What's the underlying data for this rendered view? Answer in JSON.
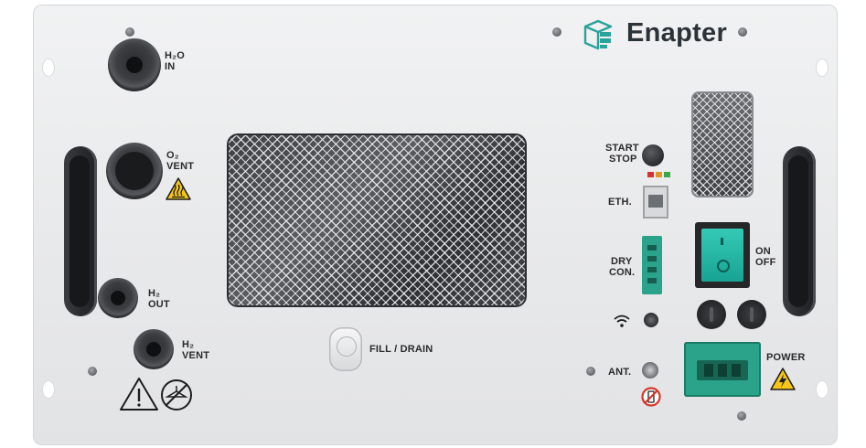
{
  "brand": {
    "name": "Enapter"
  },
  "labels": {
    "h2o_in": [
      "H₂O",
      "IN"
    ],
    "o2_vent": [
      "O₂",
      "VENT"
    ],
    "h2_out": [
      "H₂",
      "OUT"
    ],
    "h2_vent": [
      "H₂",
      "VENT"
    ],
    "start_stop": [
      "START",
      "STOP"
    ],
    "eth": "ETH.",
    "dry_con": [
      "DRY",
      "CON."
    ],
    "on_off": [
      "ON",
      "OFF"
    ],
    "fill_drain": "FILL / DRAIN",
    "ant": "ANT.",
    "power": "POWER"
  },
  "icons": {
    "brand_logo": "stack-logo-icon",
    "hot_surface": "hot-surface-warning-icon",
    "general_warning": "general-warning-icon",
    "no_valve": "no-valve-icon",
    "wifi": "wifi-icon",
    "no_phone": "no-mobile-phone-icon",
    "electrical_warning": "electrical-warning-icon"
  },
  "colors": {
    "brand_teal": "#2aa39a",
    "switch_teal": "#1fb7a6",
    "warning_yellow": "#f5c518",
    "led_red": "#d6342b",
    "led_orange": "#e59324",
    "led_green": "#3aa64a"
  }
}
